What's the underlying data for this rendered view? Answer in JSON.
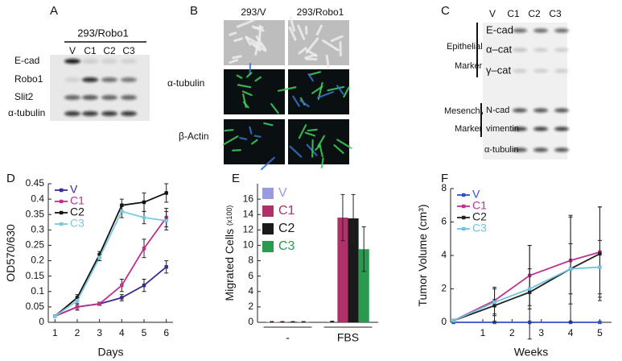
{
  "panel_a": {
    "label": "A",
    "header": "293/Robo1",
    "lanes": [
      "V",
      "C1",
      "C2",
      "C3"
    ],
    "rows": [
      "E-cad",
      "Robo1",
      "Slit2",
      "α-tubulin"
    ]
  },
  "panel_b": {
    "label": "B",
    "columns": [
      "293/V",
      "293/Robo1"
    ],
    "rows": [
      "α-tubulin",
      "β-Actin"
    ]
  },
  "panel_c": {
    "label": "C",
    "lanes": [
      "V",
      "C1",
      "C2",
      "C3"
    ],
    "groups": [
      {
        "name": [
          "Epithelial",
          "Marker"
        ],
        "rows": [
          "E-cad",
          "α–cat",
          "γ–cat"
        ]
      },
      {
        "name": [
          "Mesenchymal",
          "Marker"
        ],
        "rows": [
          "N-cad",
          "vimentin"
        ]
      }
    ],
    "loading": "α-tubulin"
  },
  "chart_data": [
    {
      "type": "line",
      "panel": "D",
      "xlabel": "Days",
      "ylabel": "OD570/630",
      "x": [
        1,
        2,
        3,
        4,
        5,
        6
      ],
      "xlim": [
        0.7,
        6.3
      ],
      "xticks": [
        1,
        2,
        3,
        4,
        5,
        6
      ],
      "ylim": [
        0,
        0.45
      ],
      "yticks": [
        0,
        0.05,
        0.1,
        0.15,
        0.2,
        0.25,
        0.3,
        0.35,
        0.4,
        0.45
      ],
      "legend": "upper left",
      "series": [
        {
          "name": "V",
          "color": "#3b2a8c",
          "values": [
            0.02,
            0.05,
            0.06,
            0.08,
            0.12,
            0.18
          ],
          "errors": [
            0,
            0.01,
            0.005,
            0.01,
            0.02,
            0.02
          ]
        },
        {
          "name": "C1",
          "color": "#c0308f",
          "values": [
            0.02,
            0.05,
            0.06,
            0.12,
            0.24,
            0.34
          ],
          "errors": [
            0,
            0.01,
            0.005,
            0.02,
            0.03,
            0.03
          ]
        },
        {
          "name": "C2",
          "color": "#111111",
          "values": [
            0.02,
            0.08,
            0.22,
            0.38,
            0.39,
            0.42
          ],
          "errors": [
            0,
            0.01,
            0.01,
            0.02,
            0.03,
            0.03
          ]
        },
        {
          "name": "C3",
          "color": "#7cc9dd",
          "values": [
            0.02,
            0.07,
            0.21,
            0.36,
            0.34,
            0.33
          ],
          "errors": [
            0,
            0.01,
            0.01,
            0.02,
            0.02,
            0.03
          ]
        }
      ]
    },
    {
      "type": "bar",
      "panel": "E",
      "ylabel": "Migrated Cells",
      "ylabel_unit": "(x100)",
      "categories": [
        "-",
        "FBS"
      ],
      "ylim": [
        0,
        18
      ],
      "yticks": [
        0,
        2,
        4,
        6,
        8,
        10,
        12,
        14,
        16
      ],
      "legend": "upper left",
      "series": [
        {
          "name": "V",
          "color": "#9a9ae0",
          "values": [
            0.05,
            0.1
          ],
          "errors": [
            0.05,
            0.05
          ]
        },
        {
          "name": "C1",
          "color": "#b0306a",
          "values": [
            0.05,
            13.6
          ],
          "errors": [
            0.05,
            3
          ]
        },
        {
          "name": "C2",
          "color": "#1a1a1a",
          "values": [
            0.05,
            13.5
          ],
          "errors": [
            0.05,
            3.1
          ]
        },
        {
          "name": "C3",
          "color": "#2a9a50",
          "values": [
            0.05,
            9.5
          ],
          "errors": [
            0.05,
            2.9
          ]
        }
      ]
    },
    {
      "type": "line",
      "panel": "F",
      "xlabel": "Weeks",
      "ylabel": "Tumor Volume (cm³)",
      "x": [
        0,
        1.4,
        2.6,
        4,
        5
      ],
      "xlim": [
        -0.1,
        5.4
      ],
      "xticks": [
        1,
        2,
        3,
        4,
        5
      ],
      "ylim": [
        0,
        8
      ],
      "yticks": [
        0,
        2,
        4,
        6,
        8
      ],
      "legend": "upper left",
      "series": [
        {
          "name": "V",
          "color": "#3050c8",
          "values": [
            0,
            0,
            0,
            0,
            0
          ],
          "errors": [
            0,
            0,
            0,
            0,
            0
          ]
        },
        {
          "name": "C1",
          "color": "#c0308f",
          "values": [
            0.1,
            1.3,
            2.8,
            3.7,
            4.2
          ],
          "errors": [
            0,
            0.8,
            1.8,
            2.6,
            2.7
          ]
        },
        {
          "name": "C2",
          "color": "#222222",
          "values": [
            0.1,
            1.0,
            1.8,
            3.2,
            4.1
          ],
          "errors": [
            0,
            1.0,
            2.8,
            3.2,
            2.8
          ]
        },
        {
          "name": "C3",
          "color": "#6cc4dc",
          "values": [
            0.1,
            1.2,
            2.0,
            3.2,
            3.3
          ],
          "errors": [
            0,
            0.8,
            1.2,
            1.5,
            1.6
          ]
        }
      ]
    }
  ]
}
